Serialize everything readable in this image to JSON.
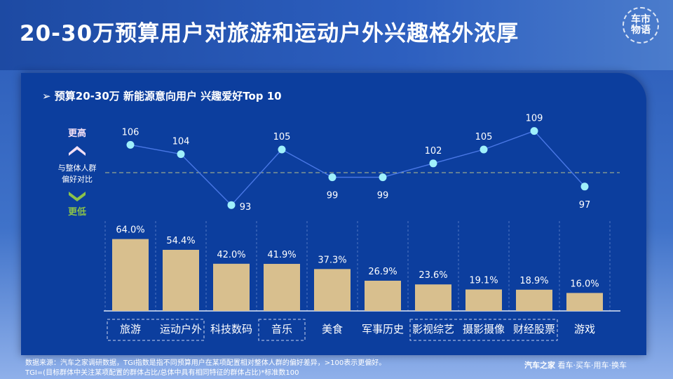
{
  "title": "20-30万预算用户对旅游和运动户外兴趣格外浓厚",
  "logo": "车市物语",
  "subtitle": "➢  预算20-30万 新能源意向用户 兴趣爱好Top 10",
  "legend": {
    "higher": "更高",
    "compare_line1": "与整体人群",
    "compare_line2": "偏好对比",
    "lower": "更低"
  },
  "footer": {
    "line1": "数据来源：汽车之家调研数据，TGI指数是指不同预算用户在某项配置相对整体人群的偏好差异，>100表示更偏好。",
    "line2": "TGI=(目标群体中关注某项配置的群体占比/总体中具有相同特征的群体占比)*标准数100",
    "brand": "汽车之家",
    "brand_tagline": " 看车·买车·用车·换车"
  },
  "chart_data": [
    {
      "type": "line",
      "name": "TGI",
      "categories": [
        "旅游",
        "运动户外",
        "科技数码",
        "音乐",
        "美食",
        "军事历史",
        "影视综艺",
        "摄影摄像",
        "财经股票",
        "游戏"
      ],
      "values": [
        106,
        104,
        93,
        105,
        99,
        99,
        102,
        105,
        109,
        97
      ],
      "reference_line": 100,
      "line_color": "#4a78e6",
      "point_color": "#9ff0fb"
    },
    {
      "type": "bar",
      "categories": [
        "旅游",
        "运动户外",
        "科技数码",
        "音乐",
        "美食",
        "军事历史",
        "影视综艺",
        "摄影摄像",
        "财经股票",
        "游戏"
      ],
      "values": [
        64.0,
        54.4,
        42.0,
        41.9,
        37.3,
        26.9,
        23.6,
        19.1,
        18.9,
        16.0
      ],
      "labels": [
        "64.0%",
        "54.4%",
        "42.0%",
        "41.9%",
        "37.3%",
        "26.9%",
        "23.6%",
        "19.1%",
        "18.9%",
        "16.0%"
      ],
      "bar_color": "#d8bf8e",
      "highlighted_groups": [
        [
          "旅游",
          "运动户外"
        ],
        [
          "音乐"
        ],
        [
          "影视综艺",
          "摄影摄像",
          "财经股票"
        ]
      ]
    }
  ]
}
